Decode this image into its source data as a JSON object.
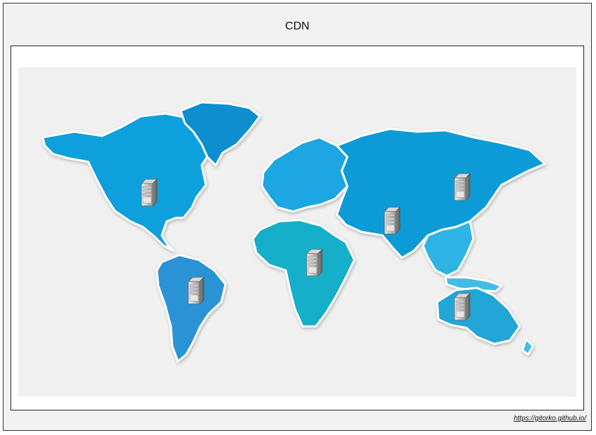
{
  "diagram": {
    "title": "CDN",
    "footer_link": "https://gitorko.github.io/"
  },
  "map": {
    "background_color": "#f0f0f0",
    "land_colors": {
      "north_america": "#0aa0dc",
      "greenland": "#0b8fcf",
      "south_america": "#2a93d6",
      "europe": "#1aa6e2",
      "africa": "#18afc9",
      "asia": "#0b9bd8",
      "south_east_asia": "#2fb3e5",
      "australia": "#22a6d6"
    },
    "servers": [
      {
        "name": "server-north-america",
        "icon": "server-icon"
      },
      {
        "name": "server-south-america",
        "icon": "server-icon"
      },
      {
        "name": "server-africa",
        "icon": "server-icon"
      },
      {
        "name": "server-india",
        "icon": "server-icon"
      },
      {
        "name": "server-east-asia",
        "icon": "server-icon"
      },
      {
        "name": "server-australia",
        "icon": "server-icon"
      }
    ]
  }
}
